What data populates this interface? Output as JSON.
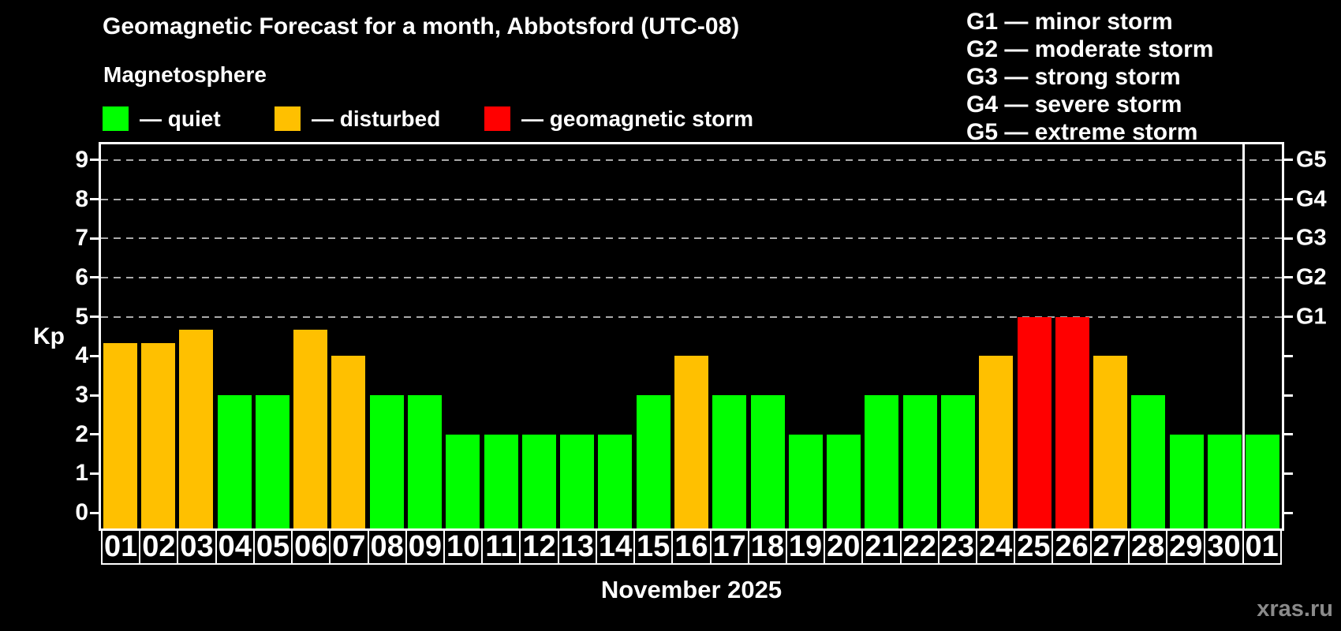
{
  "title": "Geomagnetic Forecast for a month, Abbotsford (UTC-08)",
  "subtitle": "Magnetosphere",
  "legend": [
    {
      "key": "quiet",
      "label": "— quiet",
      "color": "#00ff00"
    },
    {
      "key": "disturbed",
      "label": "— disturbed",
      "color": "#ffc000"
    },
    {
      "key": "storm",
      "label": "— geomagnetic storm",
      "color": "#ff0000"
    }
  ],
  "g_scale_legend": [
    "G1 — minor storm",
    "G2 — moderate storm",
    "G3 — strong storm",
    "G4 — severe storm",
    "G5 — extreme storm"
  ],
  "footer": {
    "xlabel": "November 2025",
    "watermark": "xras.ru"
  },
  "colors": {
    "background": "#000000",
    "text": "#ffffff",
    "grid": "#aaaaaa",
    "quiet": "#00ff00",
    "disturbed": "#ffc000",
    "storm": "#ff0000",
    "watermark": "#8a8a8a"
  },
  "chart_data": {
    "type": "bar",
    "title": "Geomagnetic Forecast for a month, Abbotsford (UTC-08)",
    "xlabel": "November 2025",
    "ylabel": "Kp",
    "ylim": [
      -0.4,
      9.4
    ],
    "yticks": [
      0,
      1,
      2,
      3,
      4,
      5,
      6,
      7,
      8,
      9
    ],
    "gridlines_at": [
      5,
      6,
      7,
      8,
      9
    ],
    "grid": "dashed horizontal at Kp 5-9 only",
    "legend_position": "top",
    "right_axis_labels": [
      {
        "kp": 5,
        "label": "G1"
      },
      {
        "kp": 6,
        "label": "G2"
      },
      {
        "kp": 7,
        "label": "G3"
      },
      {
        "kp": 8,
        "label": "G4"
      },
      {
        "kp": 9,
        "label": "G5"
      }
    ],
    "categories": [
      "01",
      "02",
      "03",
      "04",
      "05",
      "06",
      "07",
      "08",
      "09",
      "10",
      "11",
      "12",
      "13",
      "14",
      "15",
      "16",
      "17",
      "18",
      "19",
      "20",
      "21",
      "22",
      "23",
      "24",
      "25",
      "26",
      "27",
      "28",
      "29",
      "30",
      "01"
    ],
    "values": [
      4.33,
      4.33,
      4.67,
      3,
      3,
      4.67,
      4,
      3,
      3,
      2,
      2,
      2,
      2,
      2,
      3,
      4,
      3,
      3,
      2,
      2,
      3,
      3,
      3,
      4,
      5,
      5,
      4,
      3,
      2,
      2,
      2
    ],
    "statuses": [
      "disturbed",
      "disturbed",
      "disturbed",
      "quiet",
      "quiet",
      "disturbed",
      "disturbed",
      "quiet",
      "quiet",
      "quiet",
      "quiet",
      "quiet",
      "quiet",
      "quiet",
      "quiet",
      "disturbed",
      "quiet",
      "quiet",
      "quiet",
      "quiet",
      "quiet",
      "quiet",
      "quiet",
      "disturbed",
      "storm",
      "storm",
      "disturbed",
      "quiet",
      "quiet",
      "quiet",
      "quiet"
    ],
    "month_separator_index": 30
  }
}
